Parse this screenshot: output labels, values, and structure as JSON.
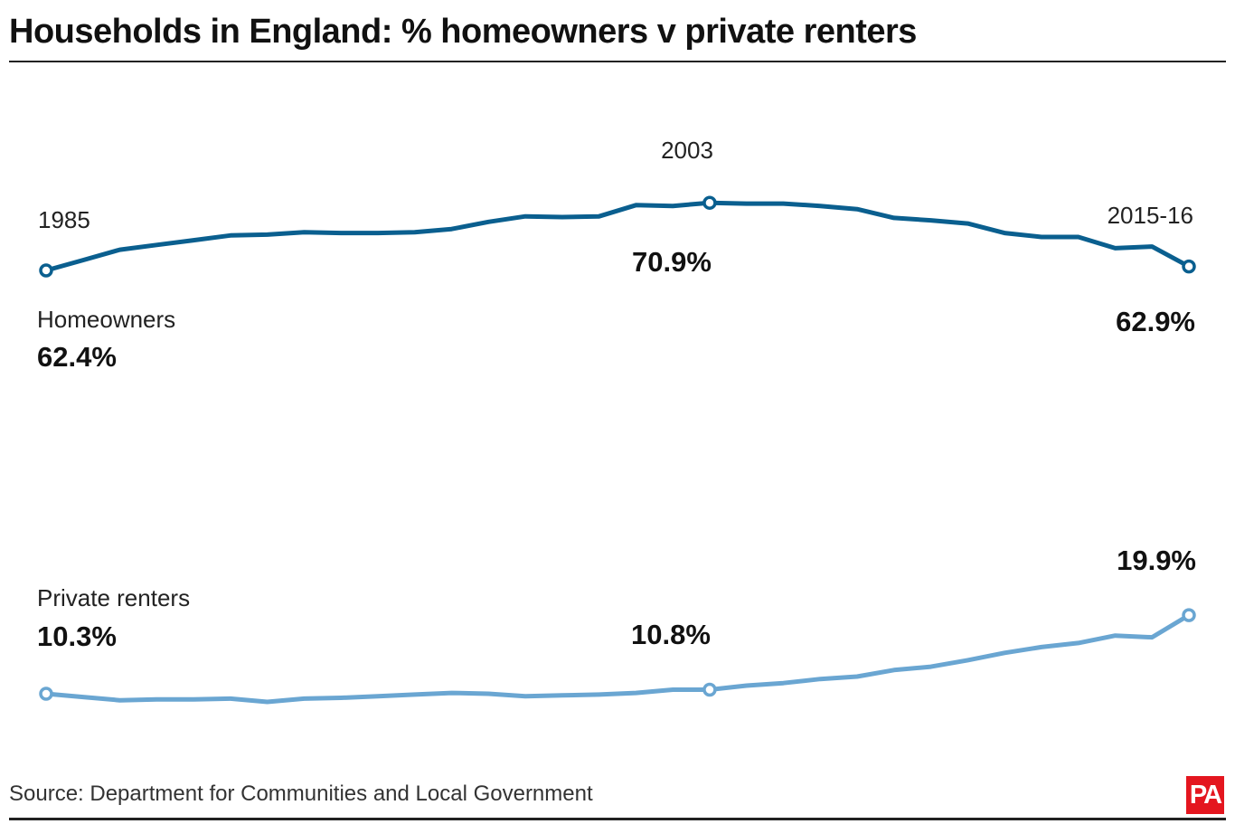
{
  "title": "Households in England: % homeowners v private renters",
  "source": "Source: Department for Communities and Local Government",
  "logo_text": "PA",
  "chart_data": {
    "type": "line",
    "title": "Households in England: % homeowners v private renters",
    "xlabel": "",
    "ylabel": "",
    "grid": false,
    "legend": "none",
    "year_labels": [
      {
        "index": 0,
        "text": "1985"
      },
      {
        "index": 18,
        "text": "2003"
      },
      {
        "index": 31,
        "text": "2015-16"
      }
    ],
    "series": [
      {
        "name": "Homeowners",
        "color": "#0a5f8f",
        "values": [
          62.4,
          63.7,
          65.0,
          65.6,
          66.2,
          66.8,
          66.9,
          67.2,
          67.1,
          67.1,
          67.2,
          67.6,
          68.5,
          69.2,
          69.1,
          69.2,
          70.6,
          70.5,
          70.9,
          70.8,
          70.8,
          70.5,
          70.1,
          69.0,
          68.7,
          68.3,
          67.1,
          66.6,
          66.6,
          65.2,
          65.4,
          62.9
        ],
        "start_label": {
          "index": 0,
          "value_text": "62.4%"
        },
        "markers": [
          {
            "index": 0,
            "text": "62.4%"
          },
          {
            "index": 18,
            "text": "70.9%"
          },
          {
            "index": 31,
            "text": "62.9%"
          }
        ]
      },
      {
        "name": "Private renters",
        "color": "#6aa6d2",
        "values": [
          10.3,
          9.9,
          9.5,
          9.6,
          9.6,
          9.7,
          9.3,
          9.7,
          9.8,
          10.0,
          10.2,
          10.4,
          10.3,
          10.0,
          10.1,
          10.2,
          10.4,
          10.8,
          10.8,
          11.3,
          11.6,
          12.1,
          12.4,
          13.2,
          13.6,
          14.4,
          15.3,
          16.0,
          16.5,
          17.4,
          17.2,
          19.9
        ],
        "markers": [
          {
            "index": 0,
            "text": "10.3%"
          },
          {
            "index": 18,
            "text": "10.8%"
          },
          {
            "index": 31,
            "text": "19.9%"
          }
        ]
      }
    ]
  }
}
